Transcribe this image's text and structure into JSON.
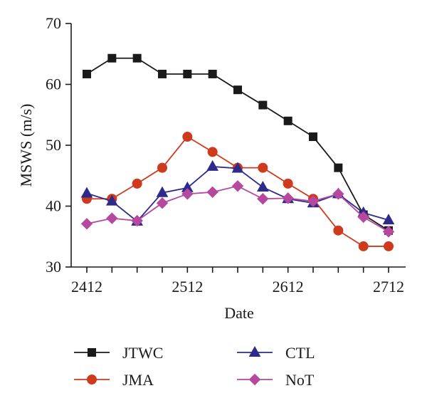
{
  "chart_data": {
    "type": "line",
    "xlabel": "Date",
    "ylabel": "MSWS (m/s)",
    "ylim": [
      30,
      70
    ],
    "yticks": [
      30,
      40,
      50,
      60,
      70
    ],
    "x_tick_labels": [
      "2412",
      "2512",
      "2612",
      "2712"
    ],
    "x_tick_positions": [
      0,
      4,
      8,
      12
    ],
    "x_index": [
      0,
      1,
      2,
      3,
      4,
      5,
      6,
      7,
      8,
      9,
      10,
      11,
      12
    ],
    "xlim": [
      0,
      12
    ],
    "grid": false,
    "legend_position": "bottom",
    "series": [
      {
        "name": "JTWC",
        "color": "#1a1a1a",
        "marker": "square",
        "values": [
          61.7,
          64.3,
          64.3,
          61.7,
          61.7,
          61.7,
          59.1,
          56.6,
          54.0,
          51.4,
          46.3,
          38.6,
          36.0
        ]
      },
      {
        "name": "JMA",
        "color": "#cf3a1c",
        "marker": "circle",
        "values": [
          41.2,
          41.2,
          43.7,
          46.3,
          51.4,
          48.9,
          46.3,
          46.3,
          43.7,
          41.2,
          36.0,
          33.4,
          33.4
        ]
      },
      {
        "name": "CTL",
        "color": "#2d2a8c",
        "marker": "triangle",
        "values": [
          42.1,
          40.8,
          37.5,
          42.2,
          43.0,
          46.5,
          46.2,
          43.1,
          41.2,
          40.5,
          42.0,
          38.9,
          37.7
        ]
      },
      {
        "name": "NoT",
        "color": "#b5489f",
        "marker": "diamond",
        "values": [
          37.1,
          38.0,
          37.6,
          40.5,
          42.0,
          42.3,
          43.3,
          41.2,
          41.3,
          40.8,
          42.0,
          38.2,
          35.8
        ]
      }
    ]
  }
}
